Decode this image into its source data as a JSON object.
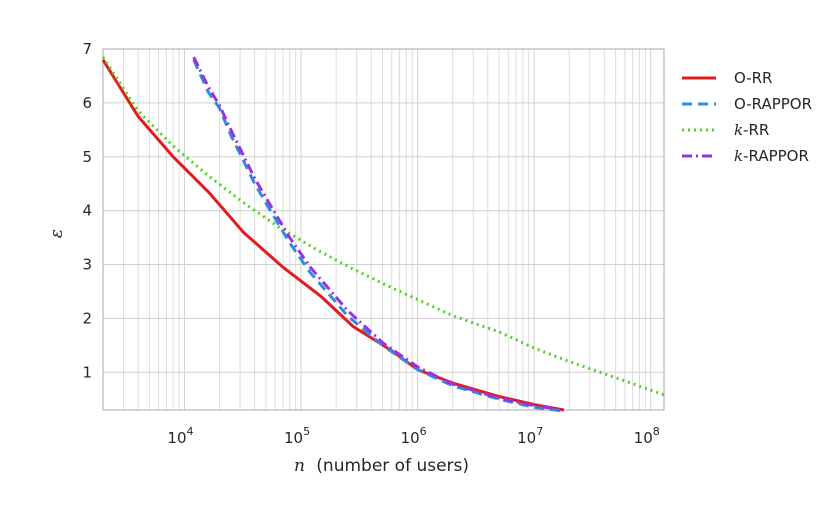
{
  "chart_data": {
    "type": "line",
    "xscale": "log",
    "xlim": [
      2000,
      130000000
    ],
    "ylim": [
      0.3,
      7
    ],
    "xticks": [
      {
        "value": 10000,
        "base": "10",
        "exp": "4"
      },
      {
        "value": 100000,
        "base": "10",
        "exp": "5"
      },
      {
        "value": 1000000,
        "base": "10",
        "exp": "6"
      },
      {
        "value": 10000000,
        "base": "10",
        "exp": "7"
      },
      {
        "value": 100000000,
        "base": "10",
        "exp": "8"
      }
    ],
    "yticks": [
      1,
      2,
      3,
      4,
      5,
      6,
      7
    ],
    "xlabel_var": "n",
    "xlabel_text": "(number of users)",
    "ylabel": "ε",
    "grid": true,
    "legend_position": "outside right",
    "series": [
      {
        "name": "O-RR",
        "name_var": "",
        "name_text": "O-RR",
        "color": "#e41a1c",
        "dash": "solid",
        "x": [
          2000,
          4000,
          8000,
          16000,
          32000,
          70000,
          150000,
          280000,
          600000,
          1000000,
          2000000,
          5000000,
          10000000,
          18000000
        ],
        "y": [
          6.8,
          5.75,
          5.0,
          4.35,
          3.6,
          2.95,
          2.4,
          1.85,
          1.4,
          1.05,
          0.8,
          0.55,
          0.4,
          0.3
        ]
      },
      {
        "name": "O-RAPPOR",
        "name_var": "",
        "name_text": "O-RAPPOR",
        "color": "#2b8fe0",
        "dash": "dashed",
        "x": [
          12000,
          16000,
          20000,
          25000,
          40000,
          60000,
          80000,
          120000,
          250000,
          500000,
          1000000,
          2000000,
          5000000,
          10000000,
          18000000
        ],
        "y": [
          6.8,
          6.2,
          5.9,
          5.4,
          4.5,
          3.85,
          3.4,
          2.85,
          2.05,
          1.5,
          1.05,
          0.75,
          0.5,
          0.35,
          0.28
        ]
      },
      {
        "name": "k-RR",
        "name_var": "k",
        "name_text": "-RR",
        "color": "#4dd41f",
        "dash": "dotted",
        "x": [
          2000,
          4000,
          8000,
          16000,
          32000,
          64000,
          130000,
          260000,
          500000,
          1000000,
          2000000,
          5000000,
          10000000,
          20000000,
          50000000,
          130000000
        ],
        "y": [
          6.85,
          5.85,
          5.2,
          4.65,
          4.15,
          3.7,
          3.3,
          2.95,
          2.65,
          2.35,
          2.05,
          1.75,
          1.45,
          1.2,
          0.9,
          0.58
        ]
      },
      {
        "name": "k-RAPPOR",
        "name_var": "k",
        "name_text": "-RAPPOR",
        "color": "#9b30e6",
        "dash": "dashdot",
        "x": [
          12000,
          16000,
          20000,
          25000,
          40000,
          60000,
          80000,
          120000,
          250000,
          500000,
          1000000,
          2000000,
          5000000,
          10000000,
          18000000
        ],
        "y": [
          6.85,
          6.3,
          5.95,
          5.5,
          4.6,
          3.95,
          3.5,
          2.95,
          2.15,
          1.55,
          1.1,
          0.78,
          0.52,
          0.38,
          0.3
        ]
      }
    ]
  }
}
